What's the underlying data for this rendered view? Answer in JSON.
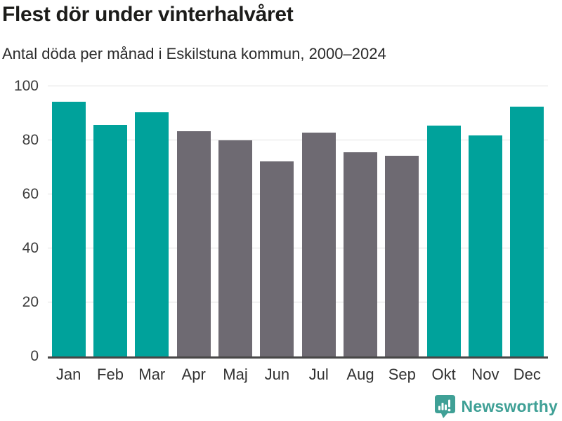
{
  "header": {
    "title": "Flest dör under vinterhalvåret",
    "subtitle": "Antal döda per månad i Eskilstuna kommun, 2000–2024"
  },
  "chart_data": {
    "type": "bar",
    "title": "Flest dör under vinterhalvåret",
    "subtitle": "Antal döda per månad i Eskilstuna kommun, 2000–2024",
    "categories": [
      "Jan",
      "Feb",
      "Mar",
      "Apr",
      "Maj",
      "Jun",
      "Jul",
      "Aug",
      "Sep",
      "Okt",
      "Nov",
      "Dec"
    ],
    "values": [
      94.4,
      85.6,
      90.3,
      83.5,
      80.1,
      72.3,
      82.8,
      75.5,
      74.2,
      85.4,
      81.7,
      92.5
    ],
    "groups": [
      "winter",
      "winter",
      "winter",
      "summer",
      "summer",
      "summer",
      "summer",
      "summer",
      "summer",
      "winter",
      "winter",
      "winter"
    ],
    "series_colors": {
      "winter": "#00a29b",
      "summer": "#6e6a72"
    },
    "xlabel": "",
    "ylabel": "",
    "ylim": [
      0,
      100
    ],
    "yticks": [
      0,
      20,
      40,
      60,
      80,
      100
    ],
    "grid": true,
    "legend": false
  },
  "footer": {
    "brand": "Newsworthy",
    "brand_color": "#3fa096",
    "logo_icon": "bar-chart-speech-bubble-icon"
  },
  "colors": {
    "highlight_teal": "#00a29b",
    "neutral_gray": "#6e6a72",
    "gridline": "#e1e1e1",
    "axis_line": "#474747",
    "title_text": "#1c1c1a",
    "tick_text": "#3d3d3d"
  }
}
